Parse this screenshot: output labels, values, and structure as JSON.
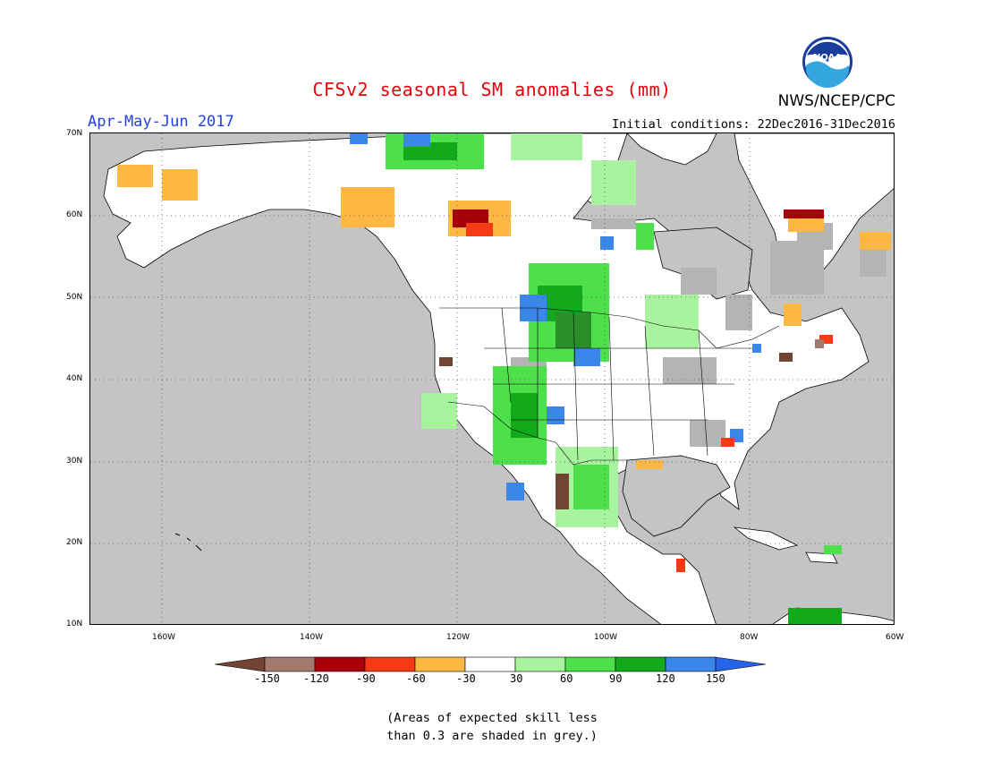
{
  "title": "CFSv2 seasonal SM anomalies (mm)",
  "period": "Apr-May-Jun 2017",
  "init_conditions": "Initial conditions: 22Dec2016-31Dec2016",
  "agency": "NWS/NCEP/CPC",
  "logo_text": "NOAA",
  "note_line1": "(Areas of expected skill less",
  "note_line2": "than 0.3 are shaded in grey.)",
  "map": {
    "lat_labels": [
      "70N",
      "60N",
      "50N",
      "40N",
      "30N",
      "20N",
      "10N"
    ],
    "lon_labels": [
      "160W",
      "140W",
      "120W",
      "100W",
      "80W",
      "60W"
    ],
    "colors": {
      "ocean_grey": "#c4c4c4",
      "land_white": "#ffffff",
      "skill_grey": "#b4b4b4"
    }
  },
  "colorbar": {
    "ticks": [
      "-150",
      "-120",
      "-90",
      "-60",
      "-30",
      "30",
      "60",
      "90",
      "120",
      "150"
    ],
    "colors": [
      "#724434",
      "#a47a6e",
      "#a8000a",
      "#f53a15",
      "#fdb743",
      "#ffffff",
      "#a7f39e",
      "#4de04a",
      "#12a91a",
      "#3b86e9",
      "#2563e8"
    ]
  }
}
